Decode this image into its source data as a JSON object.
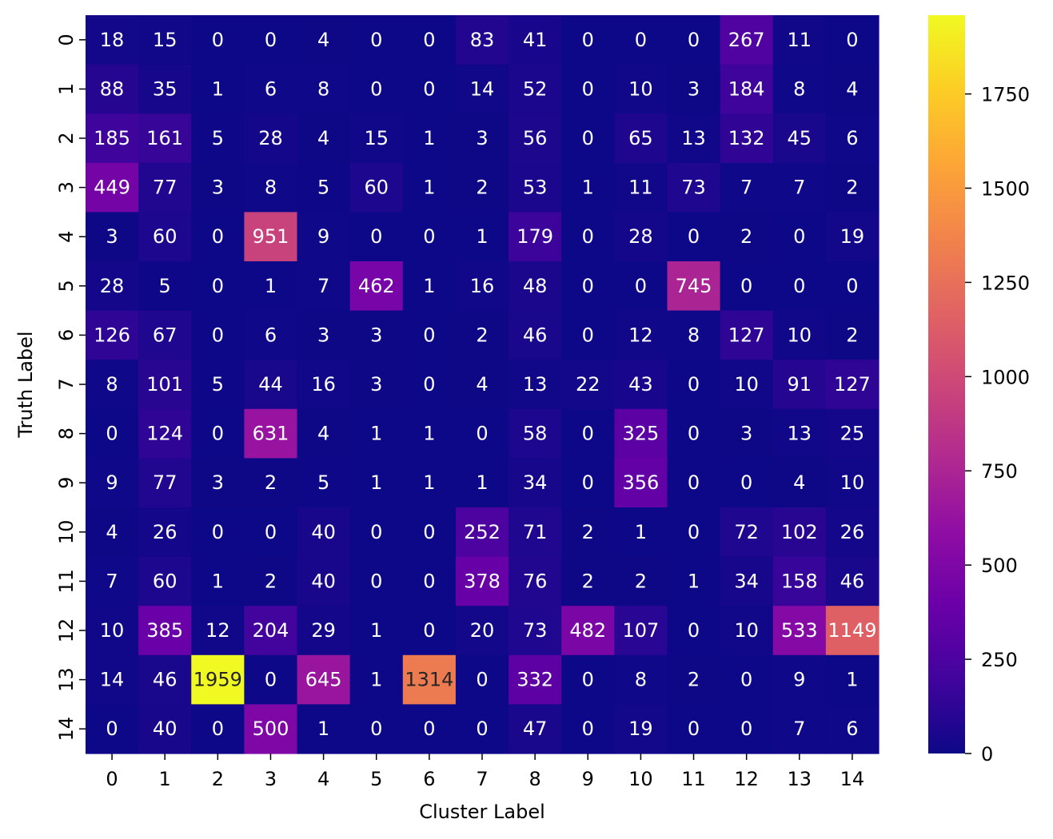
{
  "chart_data": {
    "type": "heatmap",
    "xlabel": "Cluster Label",
    "ylabel": "Truth Label",
    "x_categories": [
      "0",
      "1",
      "2",
      "3",
      "4",
      "5",
      "6",
      "7",
      "8",
      "9",
      "10",
      "11",
      "12",
      "13",
      "14"
    ],
    "y_categories": [
      "0",
      "1",
      "2",
      "3",
      "4",
      "5",
      "6",
      "7",
      "8",
      "9",
      "10",
      "11",
      "12",
      "13",
      "14"
    ],
    "values": [
      [
        18,
        15,
        0,
        0,
        4,
        0,
        0,
        83,
        41,
        0,
        0,
        0,
        267,
        11,
        0
      ],
      [
        88,
        35,
        1,
        6,
        8,
        0,
        0,
        14,
        52,
        0,
        10,
        3,
        184,
        8,
        4
      ],
      [
        185,
        161,
        5,
        28,
        4,
        15,
        1,
        3,
        56,
        0,
        65,
        13,
        132,
        45,
        6
      ],
      [
        449,
        77,
        3,
        8,
        5,
        60,
        1,
        2,
        53,
        1,
        11,
        73,
        7,
        7,
        2
      ],
      [
        3,
        60,
        0,
        951,
        9,
        0,
        0,
        1,
        179,
        0,
        28,
        0,
        2,
        0,
        19
      ],
      [
        28,
        5,
        0,
        1,
        7,
        462,
        1,
        16,
        48,
        0,
        0,
        745,
        0,
        0,
        0
      ],
      [
        126,
        67,
        0,
        6,
        3,
        3,
        0,
        2,
        46,
        0,
        12,
        8,
        127,
        10,
        2
      ],
      [
        8,
        101,
        5,
        44,
        16,
        3,
        0,
        4,
        13,
        22,
        43,
        0,
        10,
        91,
        127
      ],
      [
        0,
        124,
        0,
        631,
        4,
        1,
        1,
        0,
        58,
        0,
        325,
        0,
        3,
        13,
        25
      ],
      [
        9,
        77,
        3,
        2,
        5,
        1,
        1,
        1,
        34,
        0,
        356,
        0,
        0,
        4,
        10
      ],
      [
        4,
        26,
        0,
        0,
        40,
        0,
        0,
        252,
        71,
        2,
        1,
        0,
        72,
        102,
        26
      ],
      [
        7,
        60,
        1,
        2,
        40,
        0,
        0,
        378,
        76,
        2,
        2,
        1,
        34,
        158,
        46
      ],
      [
        10,
        385,
        12,
        204,
        29,
        1,
        0,
        20,
        73,
        482,
        107,
        0,
        10,
        533,
        1149
      ],
      [
        14,
        46,
        1959,
        0,
        645,
        1,
        1314,
        0,
        332,
        0,
        8,
        2,
        0,
        9,
        1
      ],
      [
        0,
        40,
        0,
        500,
        1,
        0,
        0,
        0,
        47,
        0,
        19,
        0,
        0,
        7,
        6
      ]
    ],
    "colormap": "plasma",
    "vmin": 0,
    "vmax": 1959,
    "colorbar_ticks": [
      0,
      250,
      500,
      750,
      1000,
      1250,
      1500,
      1750
    ]
  }
}
